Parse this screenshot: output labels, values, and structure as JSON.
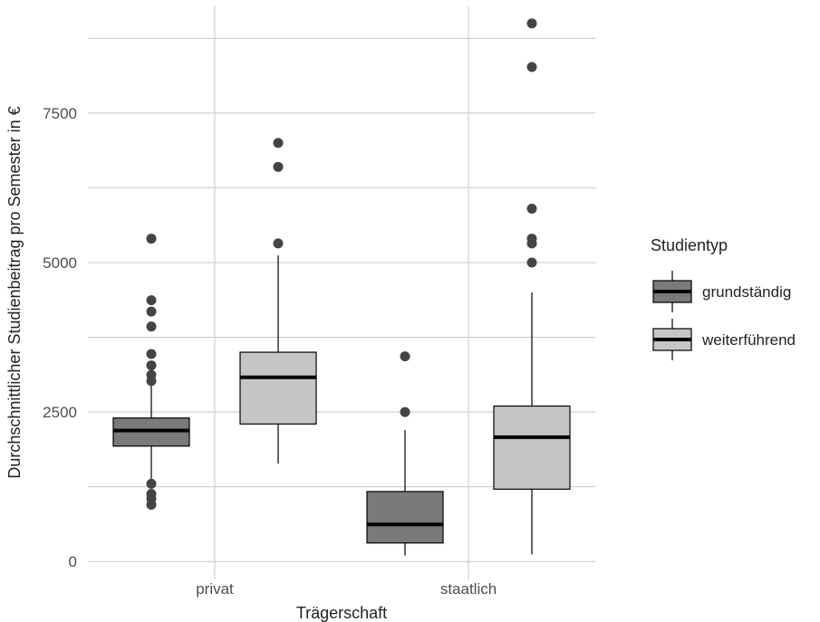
{
  "chart_data": {
    "type": "boxplot",
    "xlabel": "Trägerschaft",
    "ylabel": "Durchschnittlicher Studienbeitrag pro Semester in €",
    "ylim": [
      -300,
      9300
    ],
    "y_ticks": [
      0,
      2500,
      5000,
      7500
    ],
    "y_tick_labels": [
      "0",
      "2500",
      "5000",
      "7500"
    ],
    "categories": [
      "privat",
      "staatlich"
    ],
    "grid": true,
    "legend": {
      "title": "Studientyp",
      "position": "right"
    },
    "series": [
      {
        "name": "grundständig",
        "color": "#7a7a7a",
        "boxes": [
          {
            "category": "privat",
            "whisker_low": 1350,
            "q1": 1930,
            "median": 2190,
            "q3": 2400,
            "whisker_high": 2950,
            "outliers": [
              5400,
              4370,
              4180,
              3930,
              3470,
              3280,
              3120,
              3020,
              1300,
              1130,
              1050,
              950
            ]
          },
          {
            "category": "staatlich",
            "whisker_low": 100,
            "q1": 310,
            "median": 620,
            "q3": 1170,
            "whisker_high": 2200,
            "outliers": [
              3430,
              2500
            ]
          }
        ]
      },
      {
        "name": "weiterführend",
        "color": "#c4c6c5",
        "boxes": [
          {
            "category": "privat",
            "whisker_low": 1640,
            "q1": 2300,
            "median": 3080,
            "q3": 3500,
            "whisker_high": 5120,
            "outliers": [
              7000,
              6600,
              5320
            ]
          },
          {
            "category": "staatlich",
            "whisker_low": 120,
            "q1": 1210,
            "median": 2080,
            "q3": 2600,
            "whisker_high": 4500,
            "outliers": [
              9000,
              8270,
              5900,
              5400,
              5320,
              5000
            ]
          }
        ]
      }
    ]
  }
}
